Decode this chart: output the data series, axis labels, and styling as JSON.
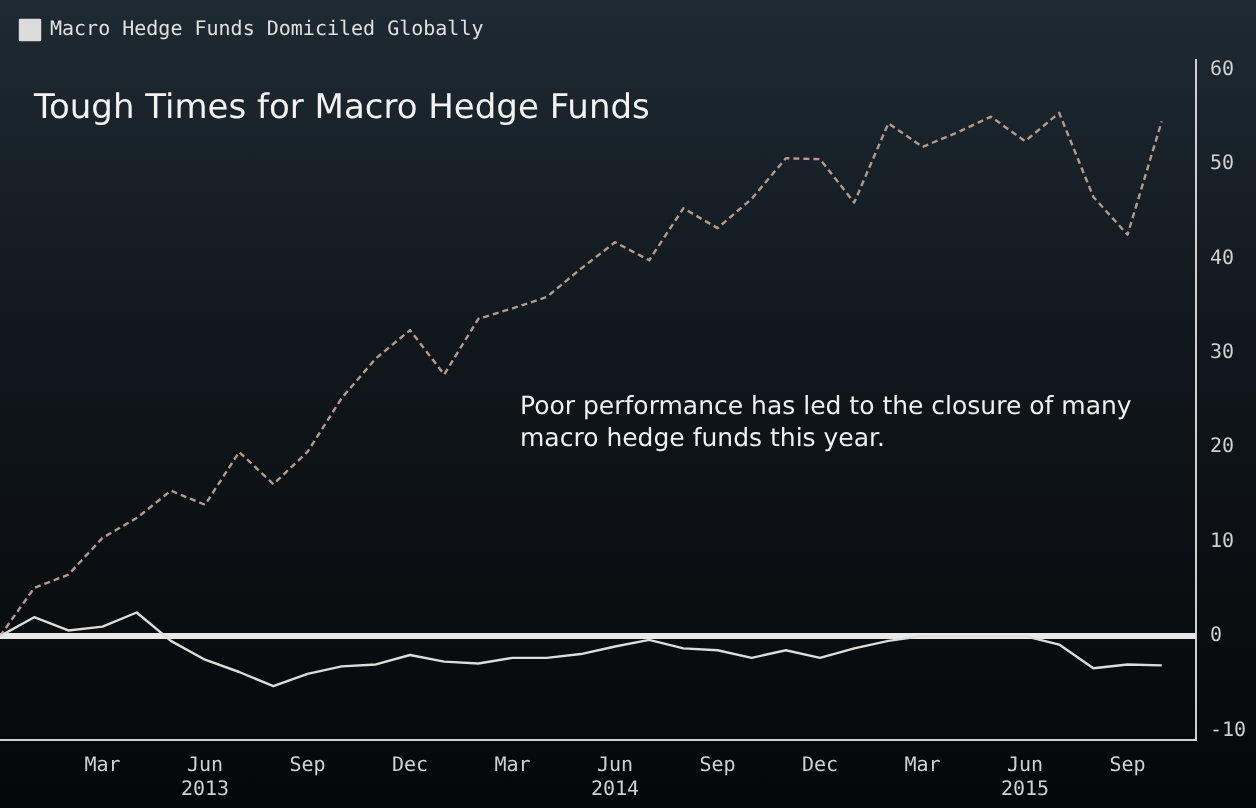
{
  "chart_data": {
    "type": "line",
    "title": "Tough Times for Macro Hedge Funds",
    "annotations": [
      "Poor performance has led to the closure of many macro hedge funds this year."
    ],
    "x": [
      "2012-12",
      "2013-01",
      "2013-02",
      "2013-03",
      "2013-04",
      "2013-05",
      "2013-06",
      "2013-07",
      "2013-08",
      "2013-09",
      "2013-10",
      "2013-11",
      "2013-12",
      "2014-01",
      "2014-02",
      "2014-03",
      "2014-04",
      "2014-05",
      "2014-06",
      "2014-07",
      "2014-08",
      "2014-09",
      "2014-10",
      "2014-11",
      "2014-12",
      "2015-01",
      "2015-02",
      "2015-03",
      "2015-04",
      "2015-05",
      "2015-06",
      "2015-07",
      "2015-08",
      "2015-09",
      "2015-10"
    ],
    "series": [
      {
        "name": "Macro Hedge Funds Domiciled Globally",
        "color": "#dcdcdc",
        "line_style": "solid",
        "values": [
          0,
          2.0,
          0.6,
          1.0,
          2.5,
          -0.5,
          -2.5,
          -3.8,
          -5.3,
          -4.0,
          -3.2,
          -3.0,
          -2.0,
          -2.7,
          -2.9,
          -2.3,
          -2.3,
          -1.9,
          -1.1,
          -0.4,
          -1.3,
          -1.5,
          -2.3,
          -1.5,
          -2.3,
          -1.3,
          -0.5,
          0,
          0,
          0,
          0,
          -0.9,
          -3.4,
          -3.0,
          -3.1
        ]
      },
      {
        "color": "#b39a8c",
        "line_style": "dashed",
        "values": [
          0,
          5.1,
          6.5,
          10.4,
          12.5,
          15.4,
          13.9,
          19.5,
          16.1,
          19.5,
          25.2,
          29.4,
          32.4,
          27.7,
          33.6,
          34.7,
          35.9,
          38.9,
          41.7,
          39.8,
          45.3,
          43.2,
          46.3,
          50.6,
          50.5,
          45.9,
          54.3,
          51.8,
          53.3,
          55.0,
          52.4,
          55.4,
          46.5,
          42.5,
          54.5
        ]
      }
    ],
    "xlim": [
      "2012-12",
      "2015-11"
    ],
    "xticks": [
      {
        "value": "2013-03",
        "label": "Mar"
      },
      {
        "value": "2013-06",
        "label": "Jun\n2013"
      },
      {
        "value": "2013-09",
        "label": "Sep"
      },
      {
        "value": "2013-12",
        "label": "Dec"
      },
      {
        "value": "2014-03",
        "label": "Mar"
      },
      {
        "value": "2014-06",
        "label": "Jun\n2014"
      },
      {
        "value": "2014-09",
        "label": "Sep"
      },
      {
        "value": "2014-12",
        "label": "Dec"
      },
      {
        "value": "2015-03",
        "label": "Mar"
      },
      {
        "value": "2015-06",
        "label": "Jun\n2015"
      },
      {
        "value": "2015-09",
        "label": "Sep"
      }
    ],
    "ylim": [
      -11,
      61
    ],
    "yticks": [
      -10,
      0,
      10,
      20,
      30,
      40,
      50,
      60
    ],
    "ref_lines": [
      {
        "axis": "y",
        "value": 0,
        "color": "#e8e8e8"
      }
    ],
    "grid": false,
    "legend": "top left",
    "marker": "none"
  }
}
